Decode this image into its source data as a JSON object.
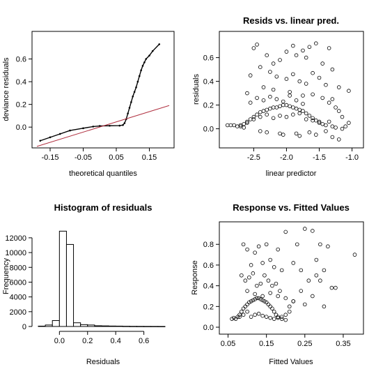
{
  "chart_data": [
    {
      "type": "scatter",
      "title": "",
      "xlabel": "theoretical quantiles",
      "ylabel": "deviance residuals",
      "xlim": [
        -0.19,
        0.21
      ],
      "ylim": [
        -0.14,
        0.8
      ],
      "x_ticks": [
        "-0.15",
        "-0.05",
        "0.05",
        "0.15"
      ],
      "y_ticks": [
        "0.0",
        "0.2",
        "0.4",
        "0.6"
      ],
      "grid": false,
      "series": [
        {
          "style": "points",
          "color": "#000000",
          "x": [
            -0.18,
            -0.15,
            -0.12,
            -0.09,
            -0.05,
            -0.02,
            0.0,
            0.03,
            0.06,
            0.07,
            0.075,
            0.08,
            0.085,
            0.09,
            0.095,
            0.1,
            0.105,
            0.11,
            0.115,
            0.12,
            0.125,
            0.13,
            0.135,
            0.14,
            0.15,
            0.16,
            0.18
          ],
          "y": [
            -0.12,
            -0.09,
            -0.06,
            -0.03,
            -0.01,
            0.005,
            0.01,
            0.012,
            0.013,
            0.018,
            0.035,
            0.07,
            0.12,
            0.17,
            0.22,
            0.27,
            0.31,
            0.35,
            0.4,
            0.45,
            0.5,
            0.54,
            0.57,
            0.6,
            0.63,
            0.67,
            0.73
          ]
        },
        {
          "style": "reference-line",
          "color": "#b03040",
          "x": [
            -0.19,
            0.21
          ],
          "y": [
            -0.17,
            0.19
          ]
        }
      ]
    },
    {
      "type": "scatter",
      "title": "Resids vs. linear pred.",
      "xlabel": "linear predictor",
      "ylabel": "residuals",
      "xlim": [
        -2.95,
        -0.9
      ],
      "ylim": [
        -0.12,
        0.78
      ],
      "x_ticks": [
        "-2.5",
        "-2.0",
        "-1.5",
        "-1.0"
      ],
      "y_ticks": [
        "0.0",
        "0.2",
        "0.4",
        "0.6"
      ],
      "grid": false,
      "series": [
        {
          "marker": "open-circle",
          "x": [
            -2.9,
            -2.85,
            -2.8,
            -2.75,
            -2.7,
            -2.65,
            -2.6,
            -2.55,
            -2.5,
            -2.45,
            -2.4,
            -2.35,
            -2.3,
            -2.25,
            -2.2,
            -2.15,
            -2.1,
            -2.05,
            -2.0,
            -1.95,
            -1.9,
            -1.85,
            -1.8,
            -1.75,
            -1.7,
            -1.65,
            -1.6,
            -1.55,
            -1.5,
            -1.45,
            -1.4,
            -1.35,
            -1.3,
            -1.25,
            -1.2,
            -1.15,
            -1.1,
            -1.05,
            -2.5,
            -2.45,
            -2.3,
            -2.2,
            -2.1,
            -2.0,
            -1.9,
            -1.85,
            -1.75,
            -1.7,
            -1.65,
            -1.55,
            -1.45,
            -1.35,
            -1.3,
            -1.2,
            -1.05,
            -2.55,
            -2.4,
            -2.25,
            -2.15,
            -2.0,
            -1.9,
            -1.8,
            -1.7,
            -1.6,
            -1.5,
            -1.4,
            -1.3,
            -2.6,
            -2.35,
            -2.2,
            -1.95,
            -1.75,
            -1.6,
            -1.45,
            -1.35,
            -1.25,
            -2.4,
            -2.3,
            -2.1,
            -2.05,
            -1.85,
            -1.8,
            -1.65,
            -1.55,
            -1.4,
            -1.3,
            -1.2,
            -1.15,
            -2.55,
            -2.45,
            -2.35,
            -2.25,
            -2.15,
            -2.05,
            -1.95,
            -1.85,
            -1.75,
            -2.7,
            -2.65,
            -2.6,
            -2.5,
            -2.4,
            -2.3,
            -2.2,
            -2.1,
            -2.0,
            -1.9,
            -1.8,
            -1.7,
            -1.6,
            -1.5
          ],
          "y": [
            0.03,
            0.03,
            0.03,
            0.02,
            0.03,
            0.04,
            0.06,
            0.08,
            0.1,
            0.12,
            0.14,
            0.15,
            0.16,
            0.17,
            0.18,
            0.18,
            0.19,
            0.2,
            0.2,
            0.19,
            0.18,
            0.17,
            0.16,
            0.15,
            0.13,
            0.11,
            0.09,
            0.07,
            0.05,
            0.04,
            0.03,
            0.06,
            0.02,
            0.01,
            0.15,
            0.1,
            0.02,
            0.05,
            0.68,
            0.71,
            0.62,
            0.55,
            0.58,
            0.65,
            0.7,
            0.62,
            0.66,
            0.6,
            0.69,
            0.72,
            0.55,
            0.68,
            0.5,
            0.35,
            0.32,
            0.45,
            0.52,
            0.48,
            0.44,
            0.42,
            0.46,
            0.4,
            0.38,
            0.47,
            0.43,
            0.37,
            0.25,
            0.3,
            0.35,
            0.33,
            0.31,
            0.28,
            0.29,
            0.26,
            0.22,
            0.18,
            -0.02,
            -0.03,
            -0.04,
            -0.05,
            -0.04,
            -0.06,
            -0.03,
            -0.05,
            -0.02,
            -0.07,
            -0.09,
            0.0,
            0.22,
            0.26,
            0.24,
            0.27,
            0.25,
            0.23,
            0.28,
            0.24,
            0.21,
            0.02,
            0.01,
            0.05,
            0.08,
            0.1,
            0.12,
            0.09,
            0.11,
            0.1,
            0.12,
            0.13,
            0.08,
            0.07,
            0.06
          ]
        }
      ]
    },
    {
      "type": "bar",
      "title": "Histogram of residuals",
      "xlabel": "Residuals",
      "ylabel": "Frequency",
      "xlim": [
        -0.16,
        0.78
      ],
      "ylim": [
        0,
        13500
      ],
      "x_ticks": [
        "0.0",
        "0.2",
        "0.4",
        "0.6"
      ],
      "y_ticks": [
        "0",
        "2000",
        "4000",
        "6000",
        "8000",
        "10000",
        "12000"
      ],
      "grid": false,
      "bins": [
        {
          "from": -0.15,
          "to": -0.1,
          "count": 50
        },
        {
          "from": -0.1,
          "to": -0.05,
          "count": 200
        },
        {
          "from": -0.05,
          "to": 0.0,
          "count": 800
        },
        {
          "from": 0.0,
          "to": 0.05,
          "count": 12900
        },
        {
          "from": 0.05,
          "to": 0.1,
          "count": 11100
        },
        {
          "from": 0.1,
          "to": 0.15,
          "count": 500
        },
        {
          "from": 0.15,
          "to": 0.2,
          "count": 250
        },
        {
          "from": 0.2,
          "to": 0.25,
          "count": 200
        },
        {
          "from": 0.25,
          "to": 0.3,
          "count": 100
        },
        {
          "from": 0.3,
          "to": 0.35,
          "count": 80
        },
        {
          "from": 0.35,
          "to": 0.4,
          "count": 60
        },
        {
          "from": 0.4,
          "to": 0.45,
          "count": 50
        },
        {
          "from": 0.45,
          "to": 0.5,
          "count": 30
        },
        {
          "from": 0.5,
          "to": 0.55,
          "count": 20
        },
        {
          "from": 0.55,
          "to": 0.6,
          "count": 15
        },
        {
          "from": 0.6,
          "to": 0.65,
          "count": 10
        },
        {
          "from": 0.65,
          "to": 0.7,
          "count": 8
        },
        {
          "from": 0.7,
          "to": 0.75,
          "count": 5
        }
      ]
    },
    {
      "type": "scatter",
      "title": "Response vs. Fitted Values",
      "xlabel": "Fitted Values",
      "ylabel": "Response",
      "xlim": [
        0.04,
        0.39
      ],
      "ylim": [
        -0.02,
        0.97
      ],
      "x_ticks": [
        "0.05",
        "0.15",
        "0.25",
        "0.35"
      ],
      "y_ticks": [
        "0.0",
        "0.2",
        "0.4",
        "0.6",
        "0.8"
      ],
      "grid": false,
      "series": [
        {
          "marker": "open-circle",
          "x": [
            0.06,
            0.065,
            0.07,
            0.075,
            0.08,
            0.085,
            0.09,
            0.095,
            0.1,
            0.105,
            0.11,
            0.115,
            0.12,
            0.125,
            0.13,
            0.135,
            0.14,
            0.145,
            0.15,
            0.155,
            0.16,
            0.165,
            0.17,
            0.175,
            0.18,
            0.19,
            0.2,
            0.21,
            0.22,
            0.24,
            0.26,
            0.28,
            0.3,
            0.32,
            0.38,
            0.09,
            0.1,
            0.12,
            0.13,
            0.15,
            0.16,
            0.18,
            0.2,
            0.23,
            0.25,
            0.27,
            0.29,
            0.31,
            0.11,
            0.14,
            0.17,
            0.19,
            0.22,
            0.24,
            0.28,
            0.29,
            0.3,
            0.33,
            0.085,
            0.095,
            0.105,
            0.115,
            0.125,
            0.135,
            0.145,
            0.155,
            0.165,
            0.175,
            0.185,
            0.1,
            0.12,
            0.14,
            0.16,
            0.18,
            0.2,
            0.22,
            0.25,
            0.27,
            0.08,
            0.09,
            0.1,
            0.11,
            0.12,
            0.13,
            0.14,
            0.15,
            0.16,
            0.17,
            0.18,
            0.19,
            0.2,
            0.21
          ],
          "y": [
            0.08,
            0.09,
            0.08,
            0.1,
            0.12,
            0.15,
            0.18,
            0.2,
            0.22,
            0.24,
            0.25,
            0.26,
            0.27,
            0.28,
            0.28,
            0.27,
            0.26,
            0.25,
            0.24,
            0.22,
            0.2,
            0.18,
            0.15,
            0.12,
            0.1,
            0.08,
            0.07,
            0.2,
            0.25,
            0.35,
            0.45,
            0.5,
            0.55,
            0.38,
            0.7,
            0.8,
            0.75,
            0.72,
            0.78,
            0.8,
            0.65,
            0.75,
            0.92,
            0.8,
            0.95,
            0.93,
            0.8,
            0.78,
            0.6,
            0.62,
            0.58,
            0.55,
            0.62,
            0.55,
            0.65,
            0.45,
            0.2,
            0.38,
            0.5,
            0.45,
            0.48,
            0.52,
            0.4,
            0.42,
            0.5,
            0.45,
            0.4,
            0.42,
            0.35,
            0.35,
            0.32,
            0.3,
            0.33,
            0.3,
            0.28,
            0.25,
            0.22,
            0.3,
            0.1,
            0.12,
            0.15,
            0.1,
            0.12,
            0.13,
            0.11,
            0.1,
            0.09,
            0.08,
            0.09,
            0.1,
            0.12,
            0.15
          ]
        }
      ]
    }
  ]
}
